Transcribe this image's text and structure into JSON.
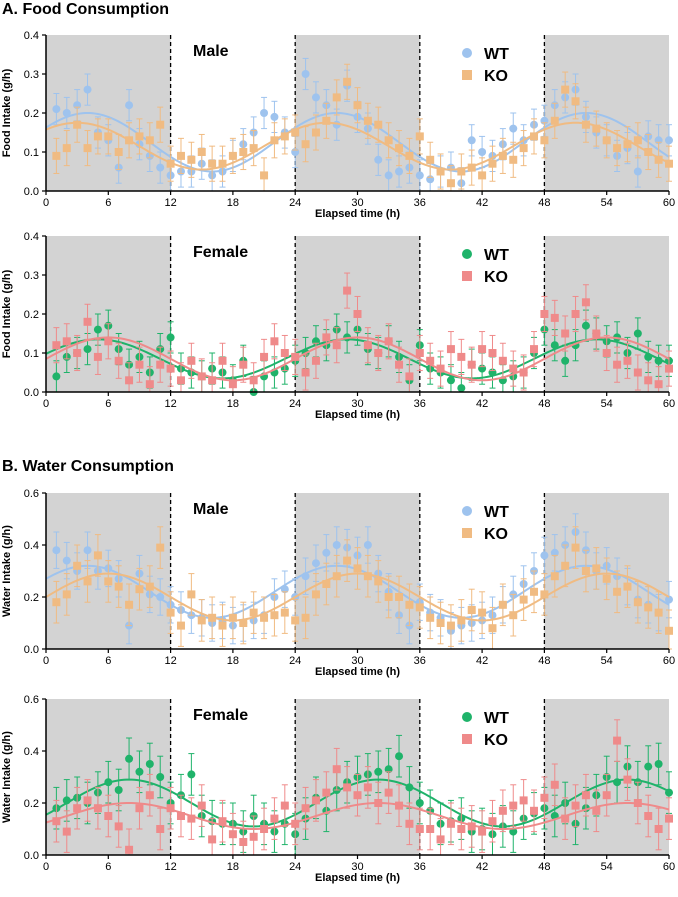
{
  "sections": [
    {
      "title": "A.  Food Consumption"
    },
    {
      "title": "B.  Water Consumption"
    }
  ],
  "colors": {
    "shade": "#d3d3d3",
    "wt_blue": "#9ec3ee",
    "ko_orange": "#f0bb82",
    "wt_green": "#1fb36a",
    "ko_red": "#ef8a8a"
  },
  "chart_data": [
    {
      "type": "scatter",
      "title": "Male",
      "xlabel": "Elapsed time  (h)",
      "ylabel": "Food Intake (g/h)",
      "xlim": [
        0,
        60
      ],
      "ylim": [
        0,
        0.4
      ],
      "xticks": [
        0,
        6,
        12,
        18,
        24,
        30,
        36,
        42,
        48,
        54,
        60
      ],
      "yticks": [
        "0.0",
        "0.1",
        "0.2",
        "0.3",
        "0.4"
      ],
      "dark_phases": [
        [
          0,
          12
        ],
        [
          24,
          36
        ],
        [
          48,
          60
        ]
      ],
      "series": [
        {
          "name": "WT",
          "marker": "circle",
          "color": "#9ec3ee",
          "mean": 0.125,
          "amp": 0.075,
          "phase": 4,
          "err": 0.04,
          "values": [
            0.21,
            0.2,
            0.22,
            0.26,
            0.15,
            0.13,
            0.06,
            0.22,
            0.12,
            0.09,
            0.06,
            0.04,
            0.05,
            0.05,
            0.07,
            0.04,
            0.05,
            0.09,
            0.12,
            0.15,
            0.2,
            0.19,
            0.15,
            0.1,
            0.3,
            0.24,
            0.22,
            0.17,
            0.27,
            0.19,
            0.16,
            0.08,
            0.04,
            0.05,
            0.06,
            0.04,
            0.03,
            0.05,
            0.06,
            0.02,
            0.13,
            0.1,
            0.09,
            0.12,
            0.16,
            0.13,
            0.17,
            0.18,
            0.22,
            0.24,
            0.26,
            0.19,
            0.15,
            0.13,
            0.09,
            0.11,
            0.05,
            0.14,
            0.13,
            0.13
          ]
        },
        {
          "name": "KO",
          "marker": "square",
          "color": "#f0bb82",
          "mean": 0.115,
          "amp": 0.06,
          "phase": 3,
          "err": 0.045,
          "values": [
            0.09,
            0.11,
            0.17,
            0.11,
            0.14,
            0.14,
            0.1,
            0.13,
            0.14,
            0.13,
            0.17,
            0.07,
            0.09,
            0.08,
            0.1,
            0.07,
            0.07,
            0.09,
            0.1,
            0.11,
            0.04,
            0.13,
            0.14,
            0.15,
            0.12,
            0.15,
            0.18,
            0.24,
            0.28,
            0.22,
            0.18,
            0.17,
            0.13,
            0.11,
            0.09,
            0.14,
            0.08,
            0.05,
            0.02,
            0.05,
            0.06,
            0.04,
            0.07,
            0.09,
            0.08,
            0.11,
            0.14,
            0.13,
            0.18,
            0.26,
            0.23,
            0.17,
            0.16,
            0.13,
            0.11,
            0.12,
            0.13,
            0.1,
            0.08,
            0.07
          ]
        }
      ],
      "fit_start": 0,
      "legend_top": 0.34
    },
    {
      "type": "scatter",
      "title": "Female",
      "xlabel": "Elapsed time  (h)",
      "ylabel": "Food Intake (g/h)",
      "xlim": [
        0,
        60
      ],
      "ylim": [
        0,
        0.4
      ],
      "xticks": [
        0,
        6,
        12,
        18,
        24,
        30,
        36,
        42,
        48,
        54,
        60
      ],
      "yticks": [
        "0.0",
        "0.1",
        "0.2",
        "0.3",
        "0.4"
      ],
      "dark_phases": [
        [
          0,
          12
        ],
        [
          24,
          36
        ],
        [
          48,
          60
        ]
      ],
      "series": [
        {
          "name": "WT",
          "marker": "circle",
          "color": "#1fb36a",
          "mean": 0.085,
          "amp": 0.05,
          "phase": 5,
          "err": 0.04,
          "values": [
            0.04,
            0.09,
            0.1,
            0.11,
            0.16,
            0.17,
            0.11,
            0.07,
            0.09,
            0.05,
            0.11,
            0.14,
            0.06,
            0.05,
            0.04,
            0.06,
            0.05,
            0.03,
            0.08,
            0.0,
            0.04,
            0.05,
            0.06,
            0.08,
            0.1,
            0.13,
            0.12,
            0.16,
            0.14,
            0.16,
            0.11,
            0.1,
            0.13,
            0.09,
            0.03,
            0.12,
            0.06,
            0.05,
            0.03,
            0.01,
            0.07,
            0.06,
            0.05,
            0.03,
            0.04,
            0.05,
            0.1,
            0.16,
            0.12,
            0.08,
            0.12,
            0.17,
            0.15,
            0.13,
            0.14,
            0.1,
            0.15,
            0.09,
            0.08,
            0.08
          ]
        },
        {
          "name": "KO",
          "marker": "square",
          "color": "#ef8a8a",
          "mean": 0.085,
          "amp": 0.055,
          "phase": 6,
          "err": 0.045,
          "values": [
            0.12,
            0.13,
            0.1,
            0.18,
            0.09,
            0.13,
            0.08,
            0.03,
            0.07,
            0.02,
            0.07,
            0.06,
            0.03,
            0.08,
            0.04,
            0.03,
            0.08,
            0.02,
            0.07,
            0.03,
            0.09,
            0.13,
            0.1,
            0.09,
            0.05,
            0.08,
            0.14,
            0.12,
            0.26,
            0.2,
            0.12,
            0.1,
            0.13,
            0.07,
            0.04,
            0.1,
            0.08,
            0.06,
            0.11,
            0.09,
            0.07,
            0.11,
            0.1,
            0.08,
            0.06,
            0.05,
            0.11,
            0.2,
            0.19,
            0.15,
            0.2,
            0.23,
            0.15,
            0.1,
            0.07,
            0.08,
            0.05,
            0.03,
            0.02,
            0.06
          ]
        }
      ],
      "fit_start": 0,
      "legend_top": 0.34
    },
    {
      "type": "scatter",
      "title": "Male",
      "xlabel": "Elapsed time  (h)",
      "ylabel": "Water Intake (g/h)",
      "xlim": [
        0,
        60
      ],
      "ylim": [
        0,
        0.6
      ],
      "xticks": [
        0,
        6,
        12,
        18,
        24,
        30,
        36,
        42,
        48,
        54,
        60
      ],
      "yticks": [
        "0.0",
        "0.2",
        "0.4",
        "0.6"
      ],
      "dark_phases": [
        [
          0,
          12
        ],
        [
          24,
          36
        ],
        [
          48,
          60
        ]
      ],
      "series": [
        {
          "name": "WT",
          "marker": "circle",
          "color": "#9ec3ee",
          "mean": 0.22,
          "amp": 0.1,
          "phase": 4,
          "err": 0.07,
          "values": [
            0.38,
            0.34,
            0.3,
            0.38,
            0.3,
            0.31,
            0.27,
            0.09,
            0.29,
            0.21,
            0.2,
            0.17,
            0.15,
            0.13,
            0.12,
            0.1,
            0.11,
            0.09,
            0.1,
            0.11,
            0.13,
            0.2,
            0.23,
            0.2,
            0.28,
            0.33,
            0.37,
            0.4,
            0.39,
            0.36,
            0.4,
            0.29,
            0.22,
            0.13,
            0.09,
            0.18,
            0.14,
            0.12,
            0.07,
            0.09,
            0.1,
            0.11,
            0.13,
            0.17,
            0.21,
            0.25,
            0.3,
            0.36,
            0.37,
            0.4,
            0.45,
            0.38,
            0.3,
            0.32,
            0.28,
            0.24,
            0.19,
            0.17,
            0.14,
            0.19
          ]
        },
        {
          "name": "KO",
          "marker": "square",
          "color": "#f0bb82",
          "mean": 0.2,
          "amp": 0.09,
          "phase": 6,
          "err": 0.08,
          "values": [
            0.18,
            0.21,
            0.32,
            0.26,
            0.36,
            0.26,
            0.24,
            0.17,
            0.23,
            0.24,
            0.39,
            0.14,
            0.09,
            0.21,
            0.11,
            0.12,
            0.09,
            0.12,
            0.1,
            0.14,
            0.12,
            0.13,
            0.14,
            0.11,
            0.12,
            0.21,
            0.25,
            0.28,
            0.34,
            0.31,
            0.28,
            0.26,
            0.2,
            0.2,
            0.17,
            0.16,
            0.12,
            0.1,
            0.09,
            0.11,
            0.15,
            0.14,
            0.08,
            0.17,
            0.13,
            0.19,
            0.22,
            0.21,
            0.28,
            0.32,
            0.39,
            0.3,
            0.31,
            0.27,
            0.22,
            0.24,
            0.18,
            0.16,
            0.14,
            0.07
          ]
        }
      ],
      "fit_start": 0,
      "legend_top": 0.51
    },
    {
      "type": "scatter",
      "title": "Female",
      "xlabel": "Elapsed time  (h)",
      "ylabel": "Water Intake (g/h)",
      "xlim": [
        0,
        60
      ],
      "ylim": [
        0,
        0.6
      ],
      "xticks": [
        0,
        6,
        12,
        18,
        24,
        30,
        36,
        42,
        48,
        54,
        60
      ],
      "yticks": [
        "0.0",
        "0.2",
        "0.4",
        "0.6"
      ],
      "dark_phases": [
        [
          0,
          12
        ],
        [
          24,
          36
        ],
        [
          48,
          60
        ]
      ],
      "series": [
        {
          "name": "WT",
          "marker": "circle",
          "color": "#1fb36a",
          "mean": 0.2,
          "amp": 0.09,
          "phase": 8,
          "err": 0.08,
          "values": [
            0.18,
            0.21,
            0.22,
            0.2,
            0.24,
            0.28,
            0.25,
            0.37,
            0.32,
            0.35,
            0.3,
            0.2,
            0.23,
            0.31,
            0.15,
            0.13,
            0.12,
            0.12,
            0.09,
            0.15,
            0.12,
            0.09,
            0.12,
            0.08,
            0.14,
            0.22,
            0.17,
            0.25,
            0.28,
            0.3,
            0.31,
            0.32,
            0.33,
            0.38,
            0.26,
            0.2,
            0.17,
            0.12,
            0.13,
            0.14,
            0.09,
            0.1,
            0.08,
            0.11,
            0.09,
            0.14,
            0.16,
            0.18,
            0.15,
            0.2,
            0.12,
            0.18,
            0.23,
            0.3,
            0.28,
            0.34,
            0.28,
            0.34,
            0.35,
            0.24
          ]
        },
        {
          "name": "KO",
          "marker": "square",
          "color": "#ef8a8a",
          "mean": 0.15,
          "amp": 0.05,
          "phase": 8,
          "err": 0.08,
          "values": [
            0.13,
            0.09,
            0.18,
            0.21,
            0.18,
            0.15,
            0.11,
            0.02,
            0.18,
            0.23,
            0.1,
            0.18,
            0.15,
            0.14,
            0.19,
            0.06,
            0.13,
            0.08,
            0.05,
            0.07,
            0.1,
            0.14,
            0.19,
            0.12,
            0.18,
            0.21,
            0.24,
            0.33,
            0.26,
            0.23,
            0.26,
            0.2,
            0.24,
            0.19,
            0.12,
            0.1,
            0.1,
            0.06,
            0.12,
            0.1,
            0.11,
            0.09,
            0.13,
            0.17,
            0.19,
            0.21,
            0.17,
            0.22,
            0.27,
            0.14,
            0.19,
            0.23,
            0.17,
            0.23,
            0.44,
            0.29,
            0.2,
            0.15,
            0.1,
            0.14
          ]
        }
      ],
      "fit_start": 0,
      "legend_top": 0.51
    }
  ]
}
